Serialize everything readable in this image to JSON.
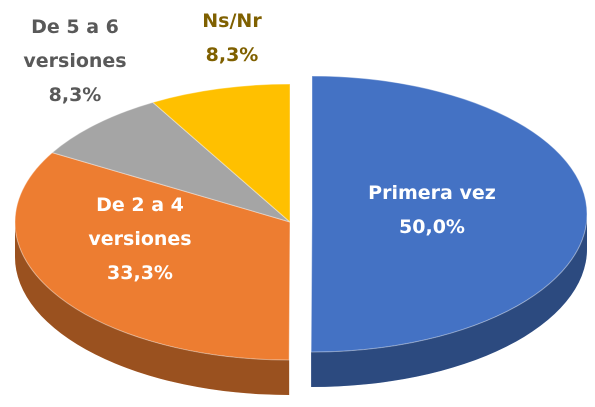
{
  "chart_data": {
    "type": "pie",
    "categories": [
      "Primera vez",
      "De 2 a 4 versiones",
      "De 5 a 6 versiones",
      "Ns/Nr"
    ],
    "values": [
      50.0,
      33.3,
      8.3,
      8.3
    ],
    "value_labels": [
      "50,0%",
      "33,3%",
      "8,3%",
      "8,3%"
    ],
    "colors": [
      "#4472c4",
      "#ed7d31",
      "#a5a5a5",
      "#ffc000"
    ]
  }
}
